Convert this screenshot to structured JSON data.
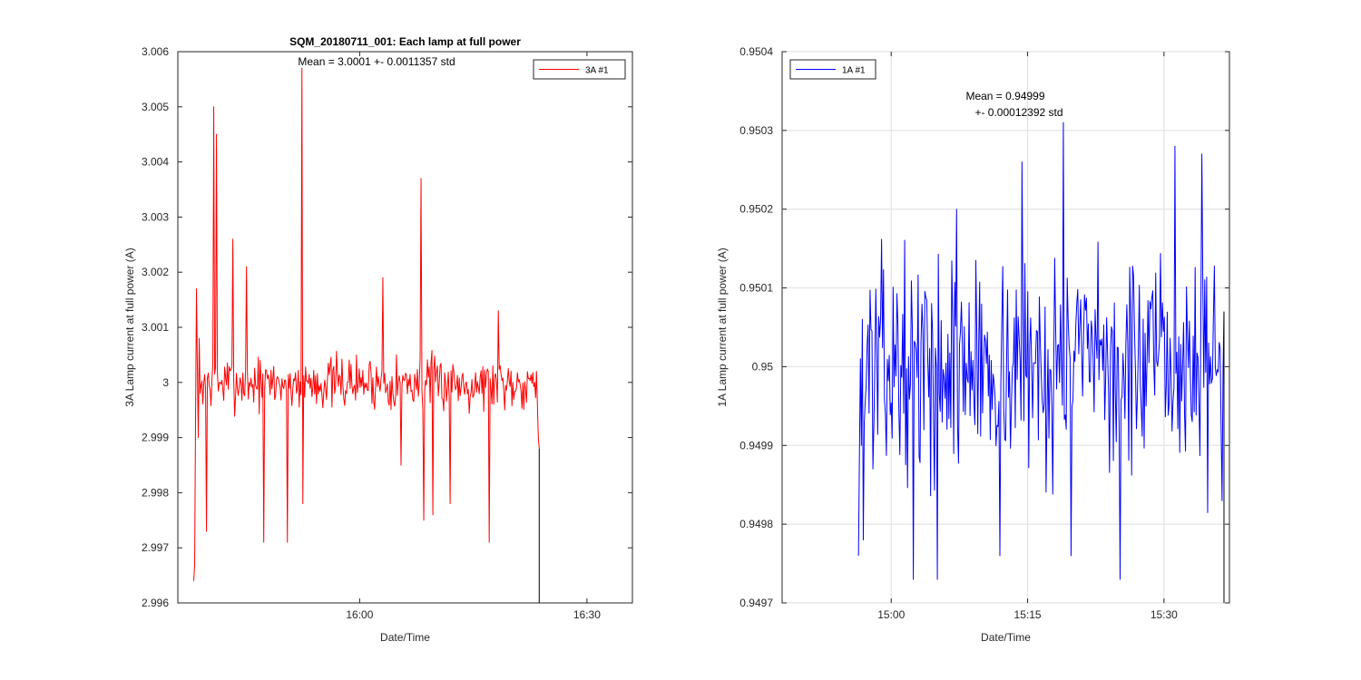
{
  "colors": {
    "axis": "#262626",
    "grid": "#dedede",
    "series_red": "#ff0000",
    "series_blue": "#0000ff",
    "tail": "#000000"
  },
  "chart_data": [
    {
      "type": "line",
      "title": "SQM_20180711_001: Each lamp at full power",
      "annotation": [
        "Mean = 3.0001 +- 0.0011357 std"
      ],
      "xlabel": "Date/Time",
      "ylabel": "3A Lamp current at full power (A)",
      "xlim": [
        15.6,
        16.6
      ],
      "ylim": [
        2.996,
        3.006
      ],
      "grid": false,
      "legend": "top-right",
      "y_ticks": [
        2.996,
        2.997,
        2.998,
        2.999,
        3,
        3.001,
        3.002,
        3.003,
        3.004,
        3.005,
        3.006
      ],
      "y_tick_labels": [
        "2.996",
        "2.997",
        "2.998",
        "2.999",
        "3",
        "3.001",
        "3.002",
        "3.003",
        "3.004",
        "3.005",
        "3.006"
      ],
      "x_ticks": [
        16.0,
        16.5
      ],
      "x_tick_labels": [
        "16:00",
        "16:30"
      ],
      "series": [
        {
          "name": "3A #1",
          "color": "#ff0000",
          "start": 15.635,
          "end": 16.395,
          "base": 3.0,
          "noise": 0.00045,
          "seed": 7,
          "head": [
            2.9964,
            2.9967,
            2.9994,
            3.0017,
            3.0002,
            2.999,
            3.0008,
            2.9998
          ],
          "tail": [
            3.0002,
            2.9996,
            2.999,
            2.9988
          ],
          "spikes": [
            [
              15.68,
              3.005
            ],
            [
              15.685,
              3.0045
            ],
            [
              15.72,
              3.0026
            ],
            [
              15.662,
              2.9973
            ],
            [
              15.788,
              2.9971
            ],
            [
              15.84,
              2.9971
            ],
            [
              15.872,
              3.0057
            ],
            [
              15.876,
              2.9978
            ],
            [
              16.09,
              2.9985
            ],
            [
              16.135,
              3.0037
            ],
            [
              16.14,
              2.9975
            ],
            [
              16.16,
              2.9976
            ],
            [
              16.285,
              2.9971
            ],
            [
              16.305,
              3.0013
            ],
            [
              16.2,
              2.9978
            ],
            [
              15.75,
              3.0021
            ],
            [
              16.05,
              3.0019
            ]
          ]
        }
      ],
      "black_tail": [
        [
          16.395,
          2.9988
        ],
        [
          16.395,
          2.996
        ]
      ]
    },
    {
      "type": "line",
      "title": "",
      "annotation": [
        "Mean = 0.94999",
        "+- 0.00012392 std"
      ],
      "xlabel": "Date/Time",
      "ylabel": "1A Lamp current at full power (A)",
      "xlim": [
        14.8,
        15.62
      ],
      "ylim": [
        0.9497,
        0.9504
      ],
      "grid": true,
      "legend": "top-left",
      "y_ticks": [
        0.9497,
        0.9498,
        0.9499,
        0.95,
        0.9501,
        0.9502,
        0.9503,
        0.9504
      ],
      "y_tick_labels": [
        "0.9497",
        "0.9498",
        "0.9499",
        "0.95",
        "0.9501",
        "0.9502",
        "0.9503",
        "0.9504"
      ],
      "x_ticks": [
        15.0,
        15.25,
        15.5
      ],
      "x_tick_labels": [
        "15:00",
        "15:15",
        "15:30"
      ],
      "series": [
        {
          "name": "1A #1",
          "color": "#0000ff",
          "start": 14.94,
          "end": 15.61,
          "base": 0.95,
          "noise": 0.00012,
          "seed": 13,
          "head": [
            0.94976,
            0.94989,
            0.95001,
            0.9499,
            0.95006,
            0.94978
          ],
          "tail": [
            0.94983,
            0.94999,
            0.95007
          ],
          "spikes": [
            [
              15.315,
              0.95031
            ],
            [
              15.04,
              0.94973
            ],
            [
              15.085,
              0.94973
            ],
            [
              15.2,
              0.94976
            ],
            [
              15.33,
              0.94976
            ],
            [
              15.42,
              0.94973
            ],
            [
              15.52,
              0.95028
            ],
            [
              15.12,
              0.9502
            ],
            [
              15.24,
              0.95026
            ],
            [
              15.57,
              0.95027
            ]
          ]
        }
      ],
      "black_tail": [
        [
          15.61,
          0.95007
        ],
        [
          15.61,
          0.9497
        ]
      ]
    }
  ]
}
